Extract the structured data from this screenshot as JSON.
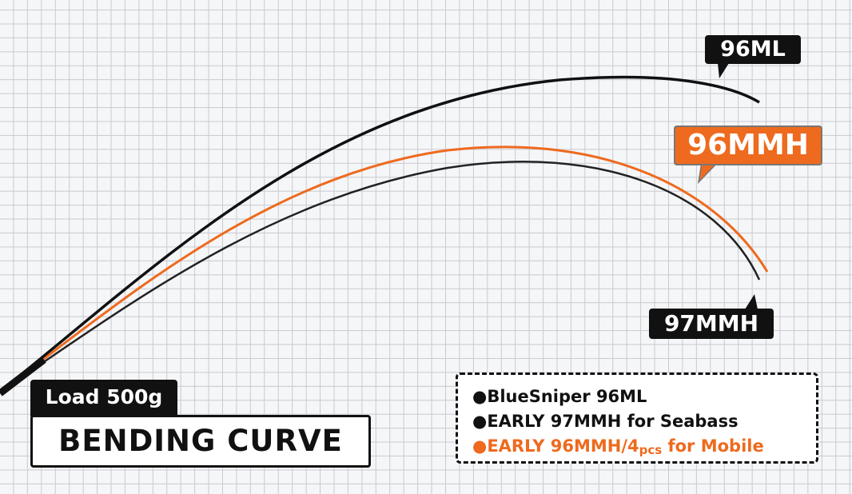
{
  "labels": {
    "ml": "96ML",
    "mmh96": "96MMH",
    "mmh97": "97MMH"
  },
  "load": "Load 500g",
  "title": "BENDING CURVE",
  "legend": {
    "items": [
      {
        "bullet": "●",
        "text": "BlueSniper 96ML",
        "color": "#111111"
      },
      {
        "bullet": "●",
        "text": "EARLY 97MMH for Seabass",
        "color": "#111111"
      },
      {
        "bullet": "●",
        "text": "EARLY 96MMH/4",
        "sub": "pcs",
        "suffix": " for Mobile",
        "color": "#ee6a1e"
      }
    ]
  },
  "colors": {
    "black": "#111111",
    "orange": "#ee6a1e",
    "grid": "#c9cacf"
  }
}
